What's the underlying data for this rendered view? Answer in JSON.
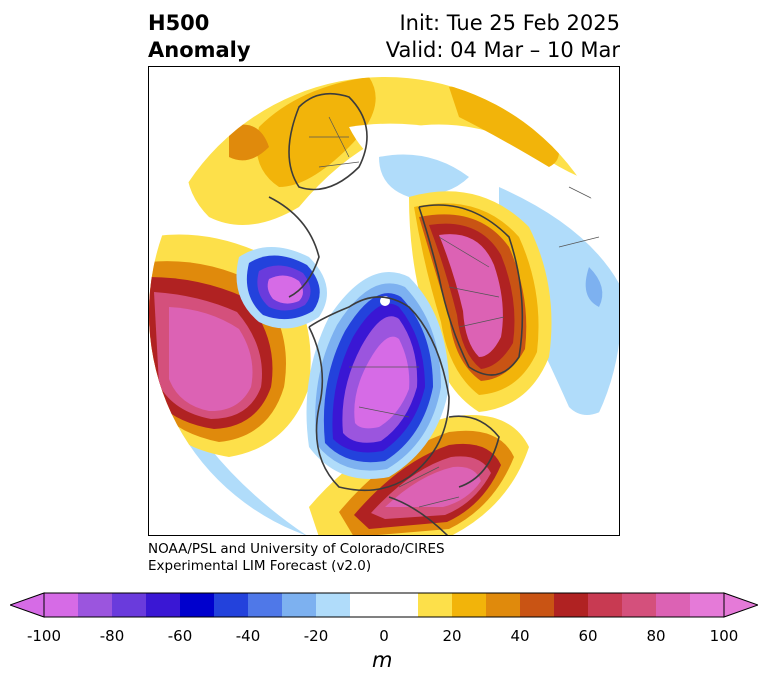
{
  "title": {
    "left": [
      "H500",
      "Anomaly"
    ],
    "right_init": "Init: Tue 25 Feb 2025",
    "right_valid": "Valid: 04 Mar – 10 Mar"
  },
  "credit": {
    "line1": "NOAA/PSL and University of Colorado/CIRES",
    "line2": "Experimental LIM Forecast (v2.0)"
  },
  "colorbar": {
    "unit": "m",
    "ticks": [
      "-100",
      "-80",
      "-60",
      "-40",
      "-20",
      "0",
      "20",
      "40",
      "60",
      "80",
      "100"
    ],
    "colors": [
      "#d66be6",
      "#9b55de",
      "#6a3bdc",
      "#3a17d4",
      "#0000cd",
      "#2342dc",
      "#4f78e8",
      "#7db1f0",
      "#b0dcfa",
      "#ffffff",
      "#ffffff",
      "#fde04a",
      "#f2b40a",
      "#e08a0c",
      "#c95414",
      "#b02222",
      "#c83a52",
      "#d4507c",
      "#dc62b4",
      "#e57ad8"
    ],
    "extend": "both"
  },
  "map": {
    "projection": "north-polar-stereographic",
    "field": "500 hPa geopotential height anomaly"
  }
}
